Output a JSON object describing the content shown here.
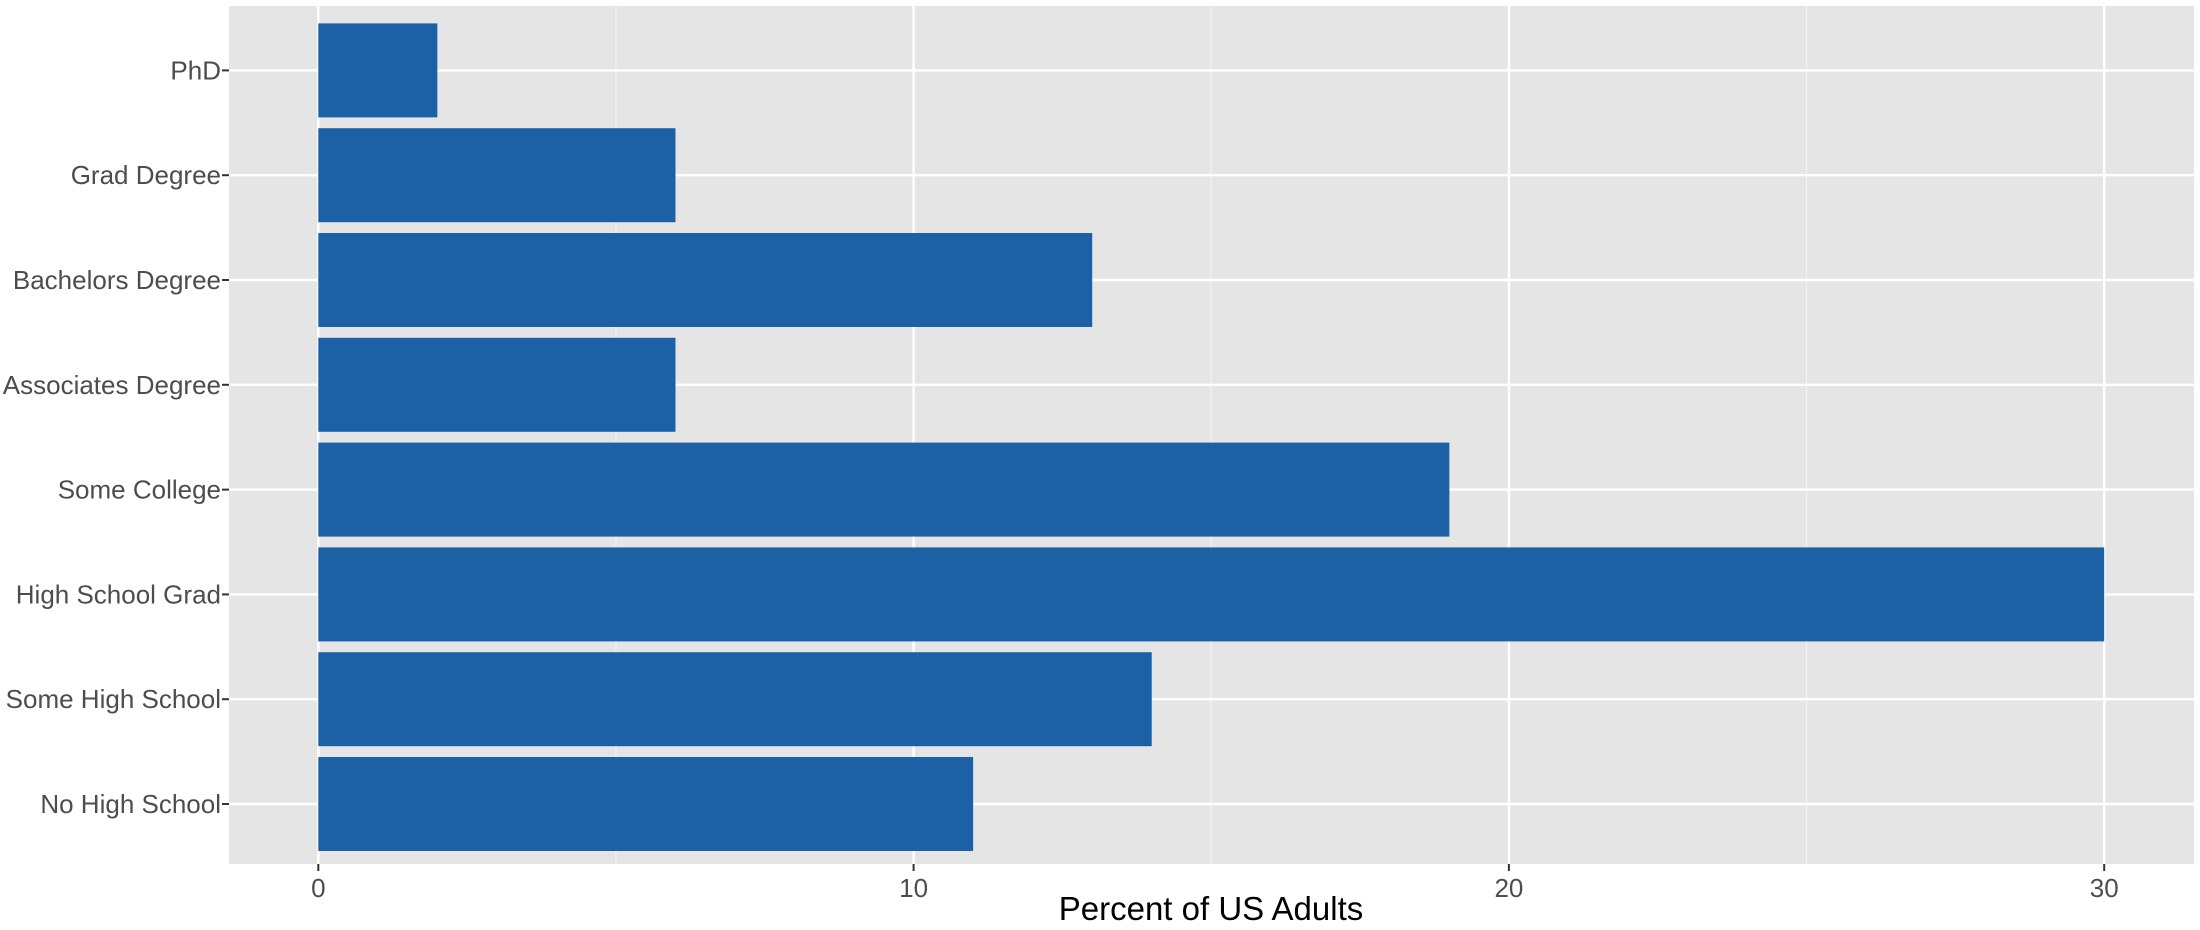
{
  "chart_data": {
    "type": "bar",
    "orientation": "horizontal",
    "categories": [
      "No High School",
      "Some High School",
      "High School Grad",
      "Some College",
      "Associates Degree",
      "Bachelors Degree",
      "Grad Degree",
      "PhD"
    ],
    "values": [
      11,
      14,
      30,
      19,
      6,
      13,
      6,
      2
    ],
    "xlabel": "Percent of US Adults",
    "ylabel": "",
    "xlim": [
      -1.5,
      31.5
    ],
    "x_ticks": [
      0,
      10,
      20,
      30
    ],
    "x_minor_ticks": [
      5,
      15,
      25
    ],
    "grid": true,
    "legend": "none",
    "colors": {
      "bar": "#1c61a6",
      "panel": "#e5e5e5",
      "grid_major": "#ffffff",
      "grid_minor": "#f2f2f2",
      "tick_label": "#4d4d4d",
      "axis_title": "#000000"
    }
  }
}
